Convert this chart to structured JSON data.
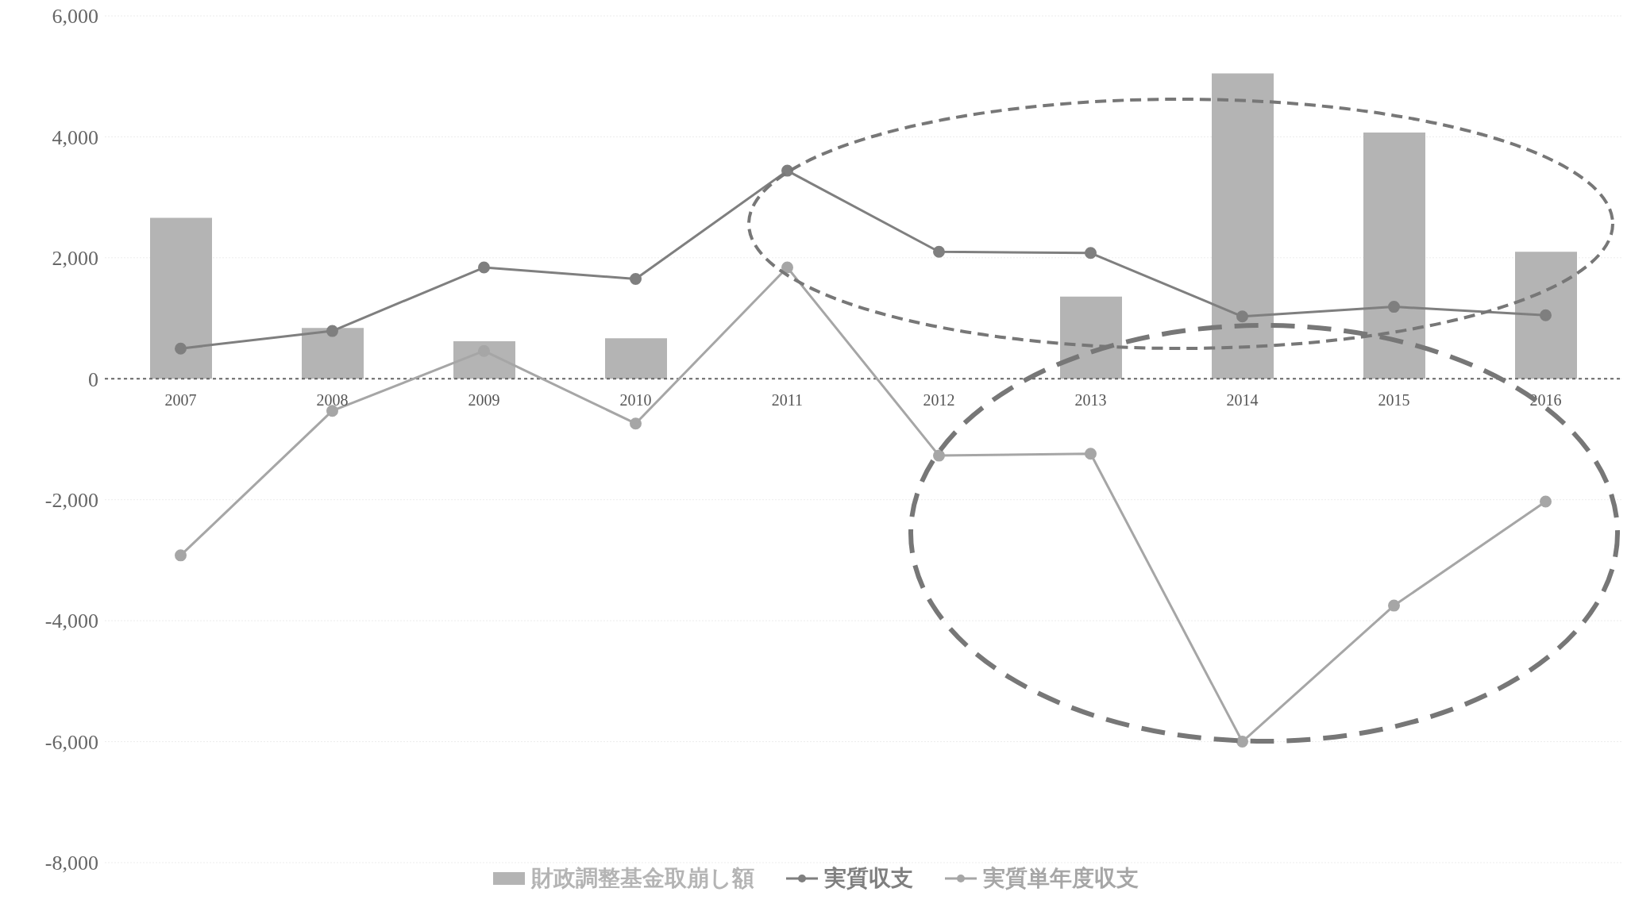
{
  "chart_data": {
    "type": "bar",
    "categories": [
      "2007",
      "2008",
      "2009",
      "2010",
      "2011",
      "2012",
      "2013",
      "2014",
      "2015",
      "2016"
    ],
    "series": [
      {
        "name": "財政調整基金取崩し額",
        "color": "#b4b4b4",
        "values": [
          2660,
          840,
          620,
          670,
          null,
          null,
          1360,
          5050,
          4070,
          2100
        ]
      },
      {
        "name": "実質収支",
        "type": "line",
        "color": "#7f7f7f",
        "values": [
          500,
          790,
          1840,
          1650,
          3440,
          2100,
          2080,
          1030,
          1190,
          1050
        ]
      },
      {
        "name": "実質単年度収支",
        "type": "line",
        "color": "#a6a6a6",
        "values": [
          -2920,
          -530,
          460,
          -740,
          1840,
          -1270,
          -1240,
          -6000,
          -3750,
          -2030
        ]
      }
    ],
    "ylim": [
      -8000,
      6000
    ],
    "yticks": [
      {
        "value": -8000,
        "label": "-8,000"
      },
      {
        "value": -6000,
        "label": "-6,000"
      },
      {
        "value": -4000,
        "label": "-4,000"
      },
      {
        "value": -2000,
        "label": "-2,000"
      },
      0,
      {
        "value": 2000,
        "label": "2,000"
      },
      {
        "value": 4000,
        "label": "4,000"
      },
      {
        "value": 6000,
        "label": "6,000"
      }
    ],
    "marker": "circle",
    "legend": "bottom",
    "grid": "y",
    "ref_lines": [
      {
        "axis": "y",
        "value": 0,
        "line_style": "dotted",
        "color": "#666666"
      }
    ]
  }
}
